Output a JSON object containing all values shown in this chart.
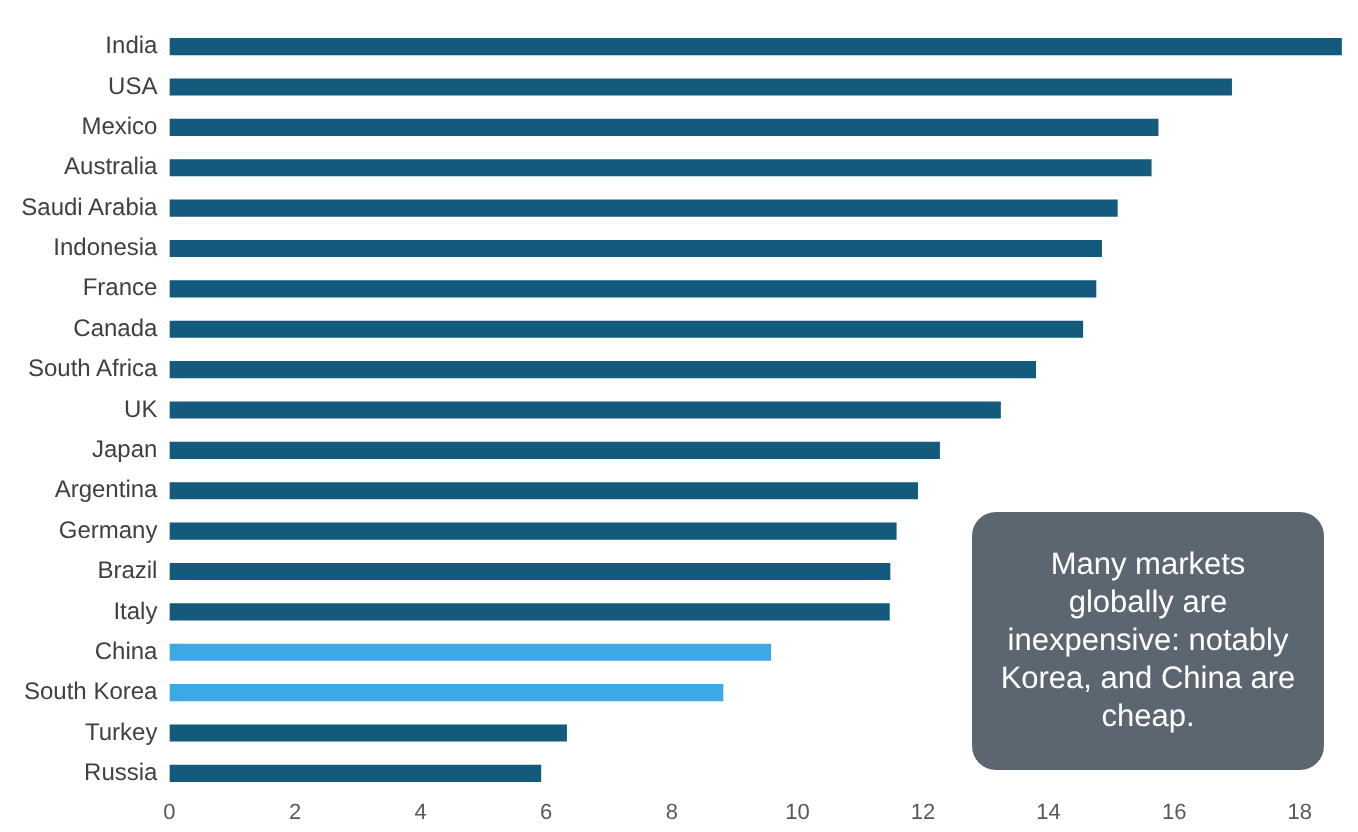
{
  "chart_data": {
    "type": "bar",
    "orientation": "horizontal",
    "categories": [
      "India",
      "USA",
      "Mexico",
      "Australia",
      "Saudi Arabia",
      "Indonesia",
      "France",
      "Canada",
      "South Africa",
      "UK",
      "Japan",
      "Argentina",
      "Germany",
      "Brazil",
      "Italy",
      "China",
      "South Korea",
      "Turkey",
      "Russia"
    ],
    "values": [
      18.67,
      16.92,
      15.75,
      15.64,
      15.1,
      14.85,
      14.76,
      14.55,
      13.8,
      13.24,
      12.27,
      11.92,
      11.58,
      11.48,
      11.47,
      9.58,
      8.82,
      6.33,
      5.92
    ],
    "colors": [
      "#135a7d",
      "#135a7d",
      "#135a7d",
      "#135a7d",
      "#135a7d",
      "#135a7d",
      "#135a7d",
      "#135a7d",
      "#135a7d",
      "#135a7d",
      "#135a7d",
      "#135a7d",
      "#135a7d",
      "#135a7d",
      "#135a7d",
      "#3ca9e6",
      "#3ca9e6",
      "#135a7d",
      "#135a7d"
    ],
    "xlim": [
      0,
      18.8
    ],
    "xticks": [
      0,
      2,
      4,
      6,
      8,
      10,
      12,
      14,
      16,
      18
    ],
    "grid": false,
    "legend": false,
    "annotations": [
      "Many markets globally are inexpensive: notably Korea, and China are cheap."
    ]
  }
}
